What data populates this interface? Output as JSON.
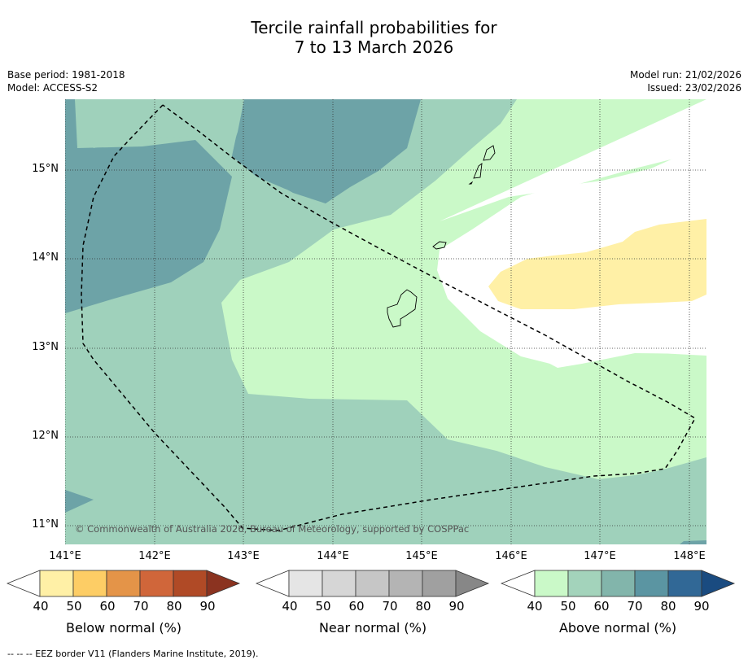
{
  "title_line1": "Tercile rainfall probabilities for",
  "title_line2": "7 to 13 March 2026",
  "base_period": "Base period: 1981-2018",
  "model": "Model: ACCESS-S2",
  "model_run": "Model run: 21/02/2026",
  "issued": "Issued: 23/02/2026",
  "map": {
    "lat_labels": [
      "15°N",
      "14°N",
      "13°N",
      "12°N",
      "11°N"
    ],
    "lon_labels": [
      "141°E",
      "142°E",
      "143°E",
      "144°E",
      "145°E",
      "146°E",
      "147°E",
      "148°E"
    ],
    "copyright": "© Commonwealth of Australia 2026, Bureau of Meteorology, supported by COSPPac",
    "lon_range": [
      141.0,
      148.2
    ],
    "lat_range": [
      10.8,
      15.8
    ]
  },
  "colorbars": [
    {
      "label": "Below normal (%)",
      "ticks": [
        "40",
        "50",
        "60",
        "70",
        "80",
        "90"
      ],
      "colors": [
        "#fff0a6",
        "#fdcd65",
        "#e49448",
        "#d0663a",
        "#b04a26",
        "#8b3320"
      ]
    },
    {
      "label": "Near normal (%)",
      "ticks": [
        "40",
        "50",
        "60",
        "70",
        "80",
        "90"
      ],
      "colors": [
        "#e5e5e5",
        "#d6d6d6",
        "#c6c6c6",
        "#b4b4b4",
        "#a0a0a0",
        "#878787"
      ]
    },
    {
      "label": "Above normal (%)",
      "ticks": [
        "40",
        "50",
        "60",
        "70",
        "80",
        "90"
      ],
      "colors": [
        "#caf9c8",
        "#a3d3bb",
        "#82b5ab",
        "#5b95a2",
        "#316896",
        "#1a4b80"
      ]
    }
  ],
  "footnote": "--  --  -- EEZ border V11 (Flanders Marine Institute, 2019)."
}
